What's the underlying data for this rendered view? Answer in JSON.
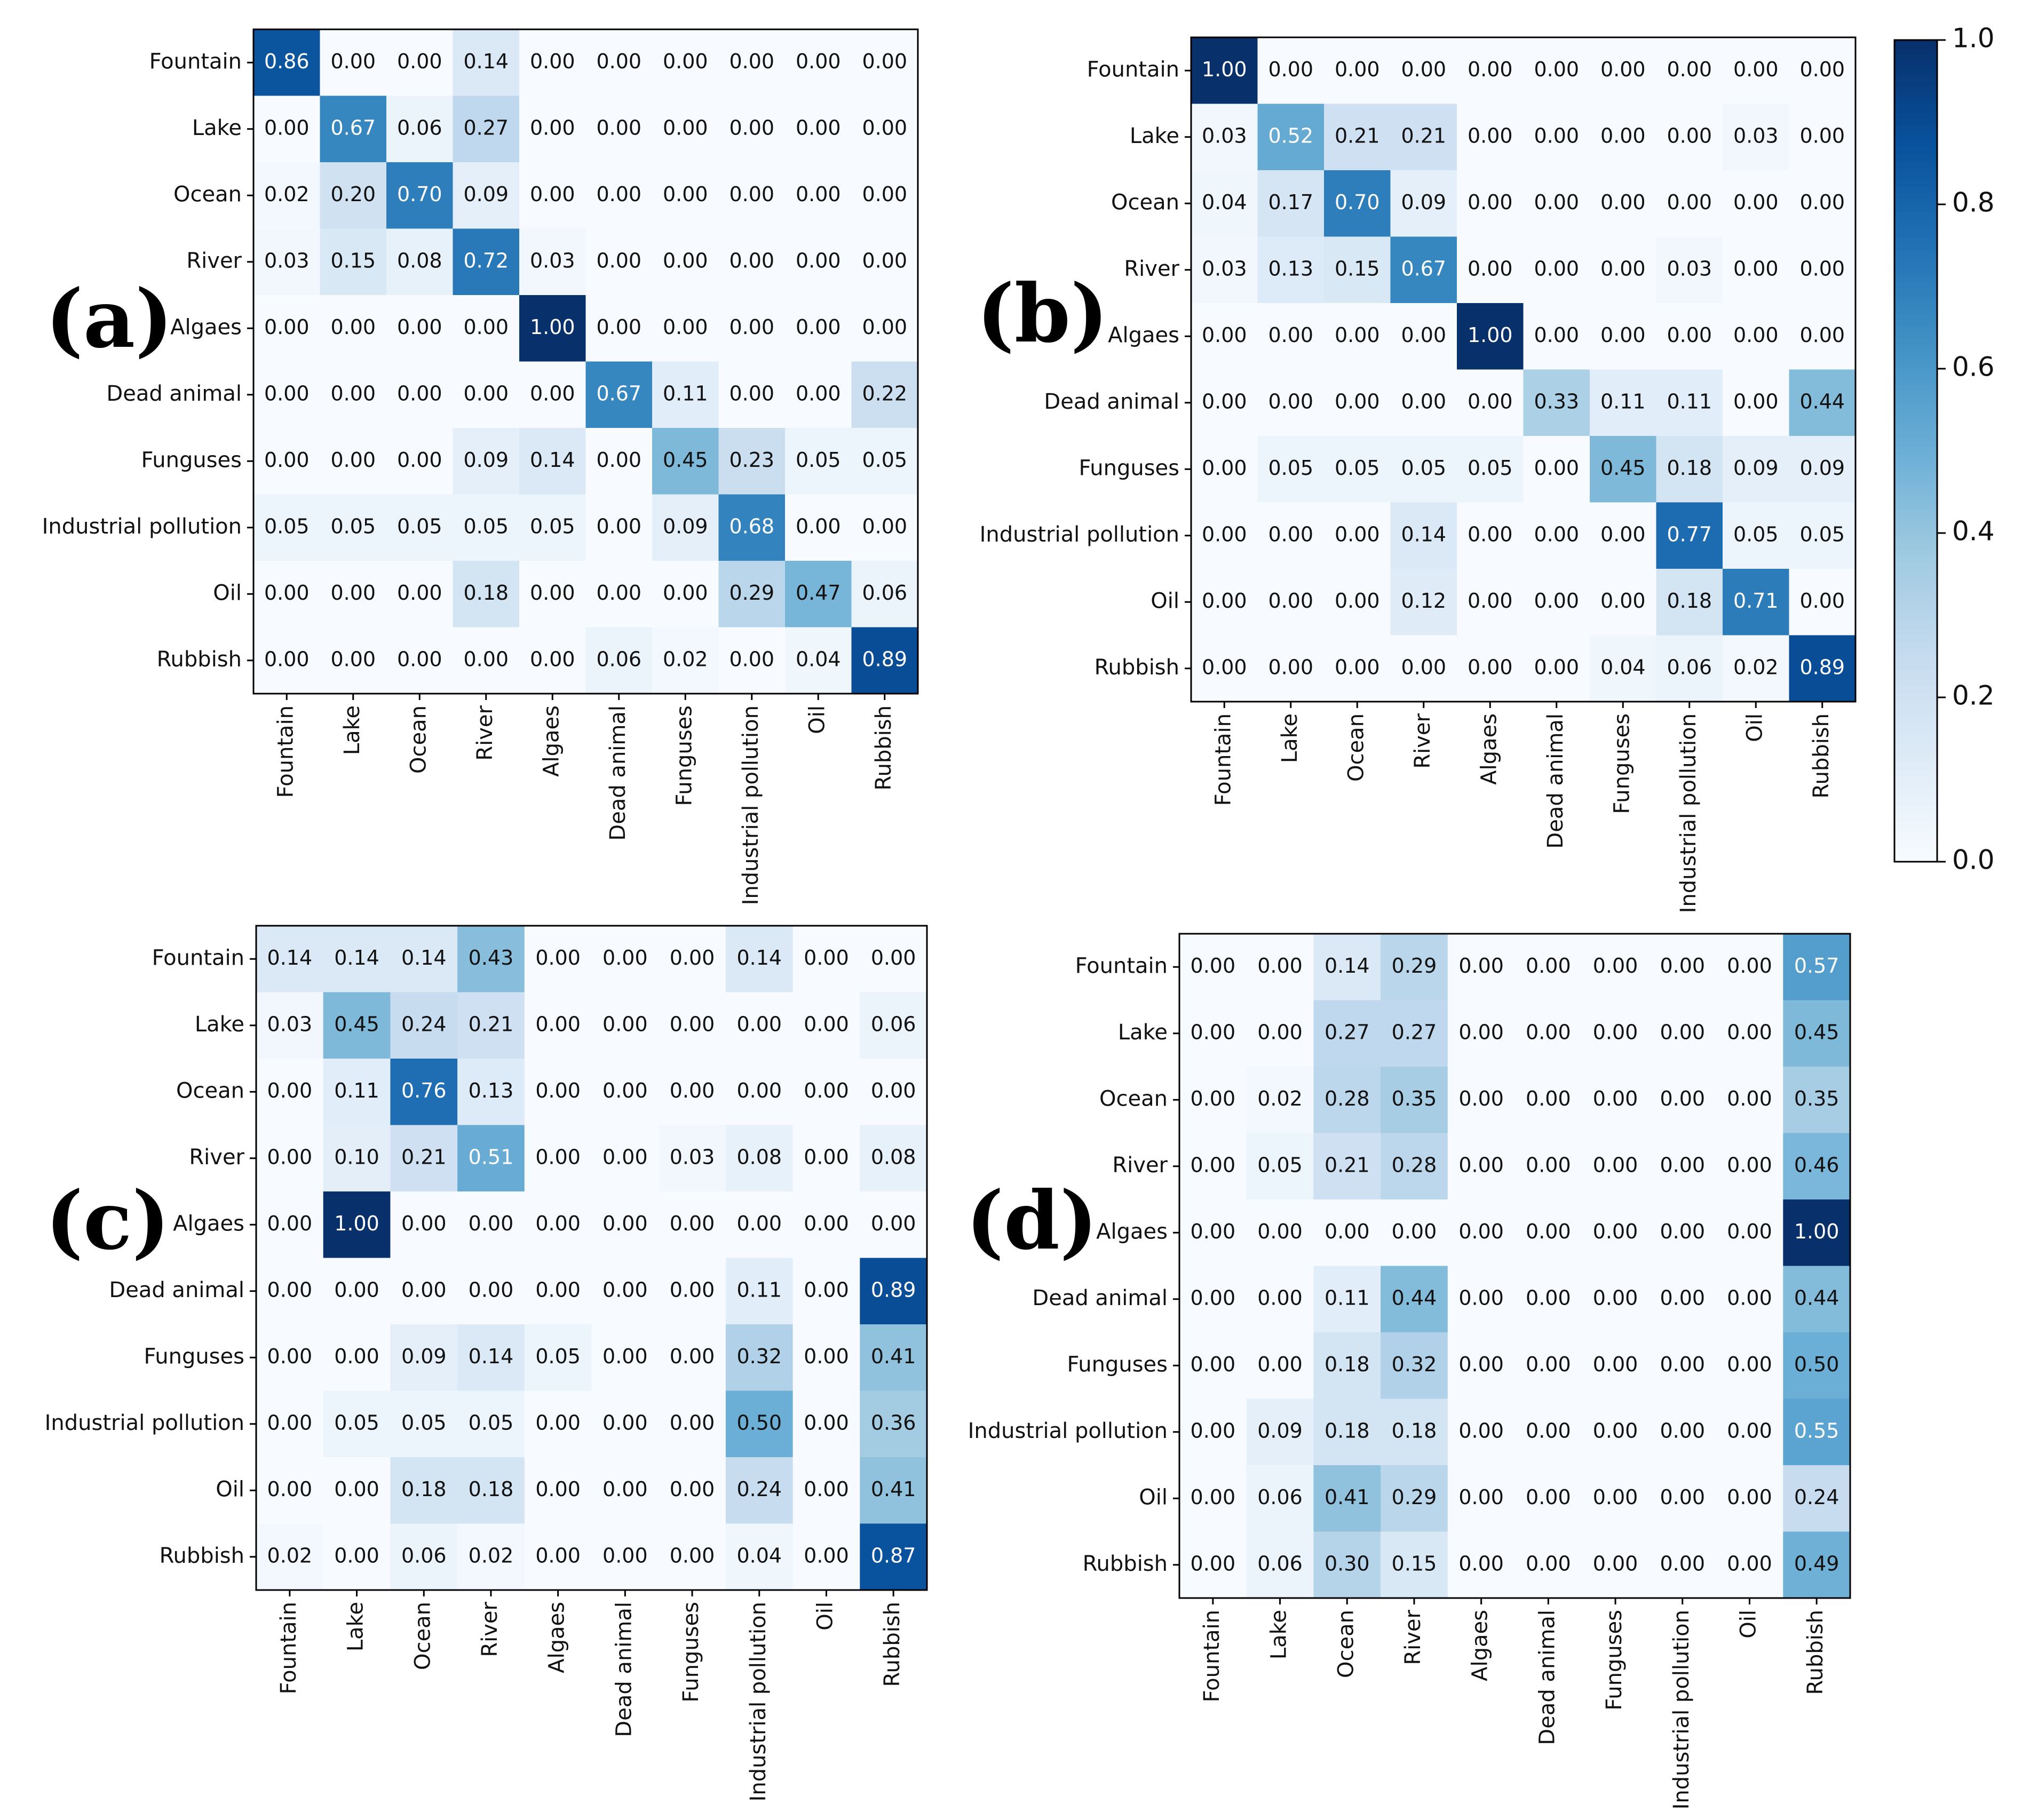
{
  "chart_data": [
    {
      "type": "heatmap",
      "panel_label": "(a)",
      "row_labels": [
        "Fountain",
        "Lake",
        "Ocean",
        "River",
        "Algaes",
        "Dead animal",
        "Funguses",
        "Industrial pollution",
        "Oil",
        "Rubbish"
      ],
      "col_labels": [
        "Fountain",
        "Lake",
        "Ocean",
        "River",
        "Algaes",
        "Dead animal",
        "Funguses",
        "Industrial pollution",
        "Oil",
        "Rubbish"
      ],
      "values": [
        [
          0.86,
          0.0,
          0.0,
          0.14,
          0.0,
          0.0,
          0.0,
          0.0,
          0.0,
          0.0
        ],
        [
          0.0,
          0.67,
          0.06,
          0.27,
          0.0,
          0.0,
          0.0,
          0.0,
          0.0,
          0.0
        ],
        [
          0.02,
          0.2,
          0.7,
          0.09,
          0.0,
          0.0,
          0.0,
          0.0,
          0.0,
          0.0
        ],
        [
          0.03,
          0.15,
          0.08,
          0.72,
          0.03,
          0.0,
          0.0,
          0.0,
          0.0,
          0.0
        ],
        [
          0.0,
          0.0,
          0.0,
          0.0,
          1.0,
          0.0,
          0.0,
          0.0,
          0.0,
          0.0
        ],
        [
          0.0,
          0.0,
          0.0,
          0.0,
          0.0,
          0.67,
          0.11,
          0.0,
          0.0,
          0.22
        ],
        [
          0.0,
          0.0,
          0.0,
          0.09,
          0.14,
          0.0,
          0.45,
          0.23,
          0.05,
          0.05
        ],
        [
          0.05,
          0.05,
          0.05,
          0.05,
          0.05,
          0.0,
          0.09,
          0.68,
          0.0,
          0.0
        ],
        [
          0.0,
          0.0,
          0.0,
          0.18,
          0.0,
          0.0,
          0.0,
          0.29,
          0.47,
          0.06
        ],
        [
          0.0,
          0.0,
          0.0,
          0.0,
          0.0,
          0.06,
          0.02,
          0.0,
          0.04,
          0.89
        ]
      ]
    },
    {
      "type": "heatmap",
      "panel_label": "(b)",
      "row_labels": [
        "Fountain",
        "Lake",
        "Ocean",
        "River",
        "Algaes",
        "Dead animal",
        "Funguses",
        "Industrial pollution",
        "Oil",
        "Rubbish"
      ],
      "col_labels": [
        "Fountain",
        "Lake",
        "Ocean",
        "River",
        "Algaes",
        "Dead animal",
        "Funguses",
        "Industrial pollution",
        "Oil",
        "Rubbish"
      ],
      "values": [
        [
          1.0,
          0.0,
          0.0,
          0.0,
          0.0,
          0.0,
          0.0,
          0.0,
          0.0,
          0.0
        ],
        [
          0.03,
          0.52,
          0.21,
          0.21,
          0.0,
          0.0,
          0.0,
          0.0,
          0.03,
          0.0
        ],
        [
          0.04,
          0.17,
          0.7,
          0.09,
          0.0,
          0.0,
          0.0,
          0.0,
          0.0,
          0.0
        ],
        [
          0.03,
          0.13,
          0.15,
          0.67,
          0.0,
          0.0,
          0.0,
          0.03,
          0.0,
          0.0
        ],
        [
          0.0,
          0.0,
          0.0,
          0.0,
          1.0,
          0.0,
          0.0,
          0.0,
          0.0,
          0.0
        ],
        [
          0.0,
          0.0,
          0.0,
          0.0,
          0.0,
          0.33,
          0.11,
          0.11,
          0.0,
          0.44
        ],
        [
          0.0,
          0.05,
          0.05,
          0.05,
          0.05,
          0.0,
          0.45,
          0.18,
          0.09,
          0.09
        ],
        [
          0.0,
          0.0,
          0.0,
          0.14,
          0.0,
          0.0,
          0.0,
          0.77,
          0.05,
          0.05
        ],
        [
          0.0,
          0.0,
          0.0,
          0.12,
          0.0,
          0.0,
          0.0,
          0.18,
          0.71,
          0.0
        ],
        [
          0.0,
          0.0,
          0.0,
          0.0,
          0.0,
          0.0,
          0.04,
          0.06,
          0.02,
          0.89
        ]
      ]
    },
    {
      "type": "heatmap",
      "panel_label": "(c)",
      "row_labels": [
        "Fountain",
        "Lake",
        "Ocean",
        "River",
        "Algaes",
        "Dead animal",
        "Funguses",
        "Industrial pollution",
        "Oil",
        "Rubbish"
      ],
      "col_labels": [
        "Fountain",
        "Lake",
        "Ocean",
        "River",
        "Algaes",
        "Dead animal",
        "Funguses",
        "Industrial pollution",
        "Oil",
        "Rubbish"
      ],
      "values": [
        [
          0.14,
          0.14,
          0.14,
          0.43,
          0.0,
          0.0,
          0.0,
          0.14,
          0.0,
          0.0
        ],
        [
          0.03,
          0.45,
          0.24,
          0.21,
          0.0,
          0.0,
          0.0,
          0.0,
          0.0,
          0.06
        ],
        [
          0.0,
          0.11,
          0.76,
          0.13,
          0.0,
          0.0,
          0.0,
          0.0,
          0.0,
          0.0
        ],
        [
          0.0,
          0.1,
          0.21,
          0.51,
          0.0,
          0.0,
          0.03,
          0.08,
          0.0,
          0.08
        ],
        [
          0.0,
          1.0,
          0.0,
          0.0,
          0.0,
          0.0,
          0.0,
          0.0,
          0.0,
          0.0
        ],
        [
          0.0,
          0.0,
          0.0,
          0.0,
          0.0,
          0.0,
          0.0,
          0.11,
          0.0,
          0.89
        ],
        [
          0.0,
          0.0,
          0.09,
          0.14,
          0.05,
          0.0,
          0.0,
          0.32,
          0.0,
          0.41
        ],
        [
          0.0,
          0.05,
          0.05,
          0.05,
          0.0,
          0.0,
          0.0,
          0.5,
          0.0,
          0.36
        ],
        [
          0.0,
          0.0,
          0.18,
          0.18,
          0.0,
          0.0,
          0.0,
          0.24,
          0.0,
          0.41
        ],
        [
          0.02,
          0.0,
          0.06,
          0.02,
          0.0,
          0.0,
          0.0,
          0.04,
          0.0,
          0.87
        ]
      ]
    },
    {
      "type": "heatmap",
      "panel_label": "(d)",
      "row_labels": [
        "Fountain",
        "Lake",
        "Ocean",
        "River",
        "Algaes",
        "Dead animal",
        "Funguses",
        "Industrial pollution",
        "Oil",
        "Rubbish"
      ],
      "col_labels": [
        "Fountain",
        "Lake",
        "Ocean",
        "River",
        "Algaes",
        "Dead animal",
        "Funguses",
        "Industrial pollution",
        "Oil",
        "Rubbish"
      ],
      "values": [
        [
          0.0,
          0.0,
          0.14,
          0.29,
          0.0,
          0.0,
          0.0,
          0.0,
          0.0,
          0.57
        ],
        [
          0.0,
          0.0,
          0.27,
          0.27,
          0.0,
          0.0,
          0.0,
          0.0,
          0.0,
          0.45
        ],
        [
          0.0,
          0.02,
          0.28,
          0.35,
          0.0,
          0.0,
          0.0,
          0.0,
          0.0,
          0.35
        ],
        [
          0.0,
          0.05,
          0.21,
          0.28,
          0.0,
          0.0,
          0.0,
          0.0,
          0.0,
          0.46
        ],
        [
          0.0,
          0.0,
          0.0,
          0.0,
          0.0,
          0.0,
          0.0,
          0.0,
          0.0,
          1.0
        ],
        [
          0.0,
          0.0,
          0.11,
          0.44,
          0.0,
          0.0,
          0.0,
          0.0,
          0.0,
          0.44
        ],
        [
          0.0,
          0.0,
          0.18,
          0.32,
          0.0,
          0.0,
          0.0,
          0.0,
          0.0,
          0.5
        ],
        [
          0.0,
          0.09,
          0.18,
          0.18,
          0.0,
          0.0,
          0.0,
          0.0,
          0.0,
          0.55
        ],
        [
          0.0,
          0.06,
          0.41,
          0.29,
          0.0,
          0.0,
          0.0,
          0.0,
          0.0,
          0.24
        ],
        [
          0.0,
          0.06,
          0.3,
          0.15,
          0.0,
          0.0,
          0.0,
          0.0,
          0.0,
          0.49
        ]
      ]
    }
  ],
  "colorbar": {
    "colormap": "Blues",
    "range": [
      0.0,
      1.0
    ],
    "ticks": [
      "0.0",
      "0.2",
      "0.4",
      "0.6",
      "0.8",
      "1.0"
    ],
    "tick_values": [
      0.0,
      0.2,
      0.4,
      0.6,
      0.8,
      1.0
    ]
  },
  "colors": {
    "cmap_stops": [
      "#f7fbff",
      "#deebf7",
      "#c6dbef",
      "#9ecae1",
      "#6baed6",
      "#4292c6",
      "#2171b5",
      "#08519c",
      "#08306b"
    ],
    "text_dark": "#111111",
    "text_light": "#ffffff"
  }
}
